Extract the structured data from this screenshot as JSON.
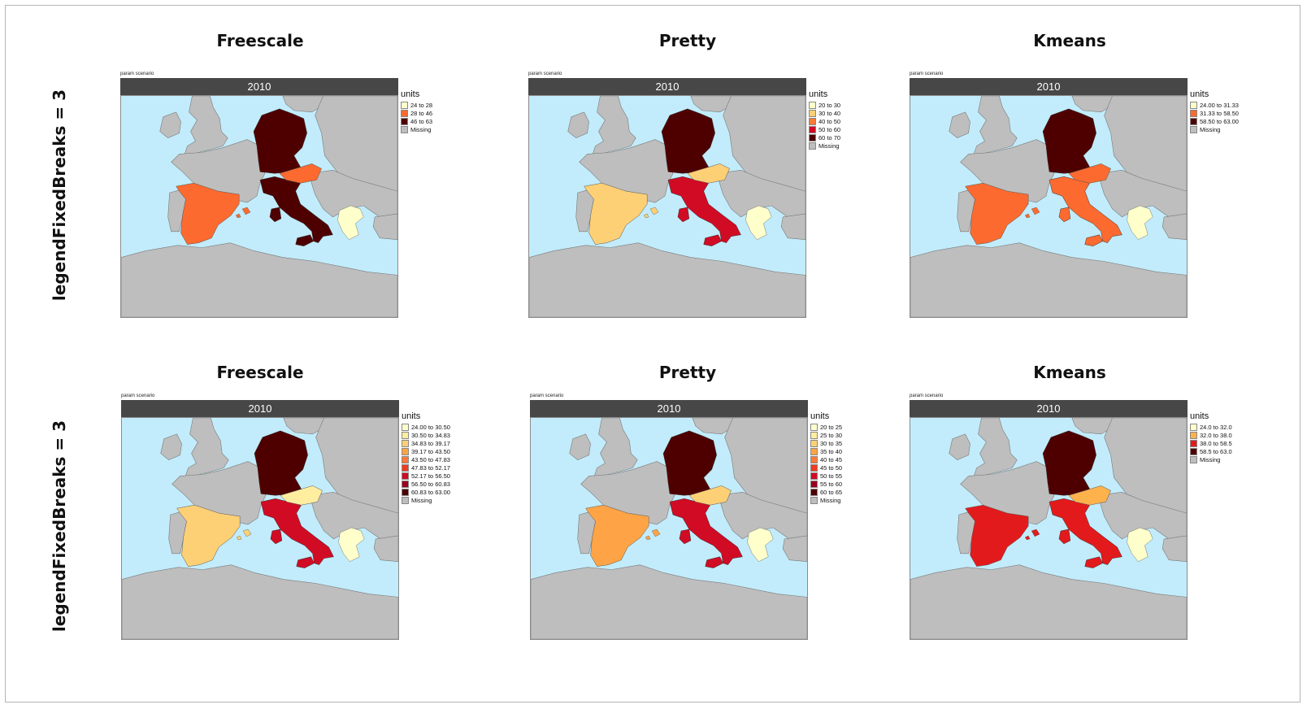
{
  "rows": [
    {
      "label": "legendFixedBreaks = 3",
      "panels": [
        {
          "title": "Freescale",
          "param_label": "param scenario",
          "strip": "2010",
          "legend_title": "units",
          "legend": [
            {
              "label": "24 to 28",
              "color": "#FFFFCC"
            },
            {
              "label": "28 to 46",
              "color": "#FD6A2F"
            },
            {
              "label": "46 to 63",
              "color": "#4E0000"
            },
            {
              "label": "Missing",
              "color": "#BEBEBE"
            }
          ],
          "countries": {
            "germany": "#4E0000",
            "austria": "#FD6A2F",
            "italy": "#4E0000",
            "spain": "#FD6A2F",
            "greece": "#FFFFCC"
          }
        },
        {
          "title": "Pretty",
          "param_label": "param scenario",
          "strip": "2010",
          "legend_title": "units",
          "legend": [
            {
              "label": "20 to 30",
              "color": "#FFFFCC"
            },
            {
              "label": "30 to 40",
              "color": "#FED076"
            },
            {
              "label": "40 to 50",
              "color": "#FD7A38"
            },
            {
              "label": "50 to 60",
              "color": "#D10B24"
            },
            {
              "label": "60 to 70",
              "color": "#4E0000"
            },
            {
              "label": "Missing",
              "color": "#BEBEBE"
            }
          ],
          "countries": {
            "germany": "#4E0000",
            "austria": "#FED076",
            "italy": "#D10B24",
            "spain": "#FED076",
            "greece": "#FFFFCC"
          }
        },
        {
          "title": "Kmeans",
          "param_label": "param scenario",
          "strip": "2010",
          "legend_title": "units",
          "legend": [
            {
              "label": "24.00 to 31.33",
              "color": "#FFFFCC"
            },
            {
              "label": "31.33 to 58.50",
              "color": "#FD6A2F"
            },
            {
              "label": "58.50 to 63.00",
              "color": "#4E0000"
            },
            {
              "label": "Missing",
              "color": "#BEBEBE"
            }
          ],
          "countries": {
            "germany": "#4E0000",
            "austria": "#FD6A2F",
            "italy": "#FD6A2F",
            "spain": "#FD6A2F",
            "greece": "#FFFFCC"
          }
        }
      ]
    },
    {
      "label": "legendFixedBreaks = 3",
      "panels": [
        {
          "title": "Freescale",
          "param_label": "param scenario",
          "strip": "2010",
          "legend_title": "units",
          "legend": [
            {
              "label": "24.00 to 30.50",
              "color": "#FFFFCC"
            },
            {
              "label": "30.50 to 34.83",
              "color": "#FFEDA0"
            },
            {
              "label": "34.83 to 39.17",
              "color": "#FED076"
            },
            {
              "label": "39.17 to 43.50",
              "color": "#FEA446"
            },
            {
              "label": "43.50 to 47.83",
              "color": "#FD7A38"
            },
            {
              "label": "47.83 to 52.17",
              "color": "#F03B20"
            },
            {
              "label": "52.17 to 56.50",
              "color": "#D10B24"
            },
            {
              "label": "56.50 to 60.83",
              "color": "#99001E"
            },
            {
              "label": "60.83 to 63.00",
              "color": "#4E0000"
            },
            {
              "label": "Missing",
              "color": "#BEBEBE"
            }
          ],
          "countries": {
            "germany": "#4E0000",
            "austria": "#FFEDA0",
            "italy": "#D10B24",
            "spain": "#FED076",
            "greece": "#FFFFCC"
          }
        },
        {
          "title": "Pretty",
          "param_label": "param scenario",
          "strip": "2010",
          "legend_title": "units",
          "legend": [
            {
              "label": "20 to 25",
              "color": "#FFFFCC"
            },
            {
              "label": "25 to 30",
              "color": "#FFEDA0"
            },
            {
              "label": "30 to 35",
              "color": "#FED076"
            },
            {
              "label": "35 to 40",
              "color": "#FEA446"
            },
            {
              "label": "40 to 45",
              "color": "#FD7A38"
            },
            {
              "label": "45 to 50",
              "color": "#F03B20"
            },
            {
              "label": "50 to 55",
              "color": "#D10B24"
            },
            {
              "label": "55 to 60",
              "color": "#99001E"
            },
            {
              "label": "60 to 65",
              "color": "#4E0000"
            },
            {
              "label": "Missing",
              "color": "#BEBEBE"
            }
          ],
          "countries": {
            "germany": "#4E0000",
            "austria": "#FED076",
            "italy": "#D10B24",
            "spain": "#FEA446",
            "greece": "#FFFFCC"
          }
        },
        {
          "title": "Kmeans",
          "param_label": "param scenario",
          "strip": "2010",
          "legend_title": "units",
          "legend": [
            {
              "label": "24.0 to 32.0",
              "color": "#FFFFCC"
            },
            {
              "label": "32.0 to 38.0",
              "color": "#FEB24C"
            },
            {
              "label": "38.0 to 58.5",
              "color": "#E31A1C"
            },
            {
              "label": "58.5 to 63.0",
              "color": "#4E0000"
            },
            {
              "label": "Missing",
              "color": "#BEBEBE"
            }
          ],
          "countries": {
            "germany": "#4E0000",
            "austria": "#FEB24C",
            "italy": "#E31A1C",
            "spain": "#E31A1C",
            "greece": "#FFFFCC"
          }
        }
      ]
    }
  ]
}
